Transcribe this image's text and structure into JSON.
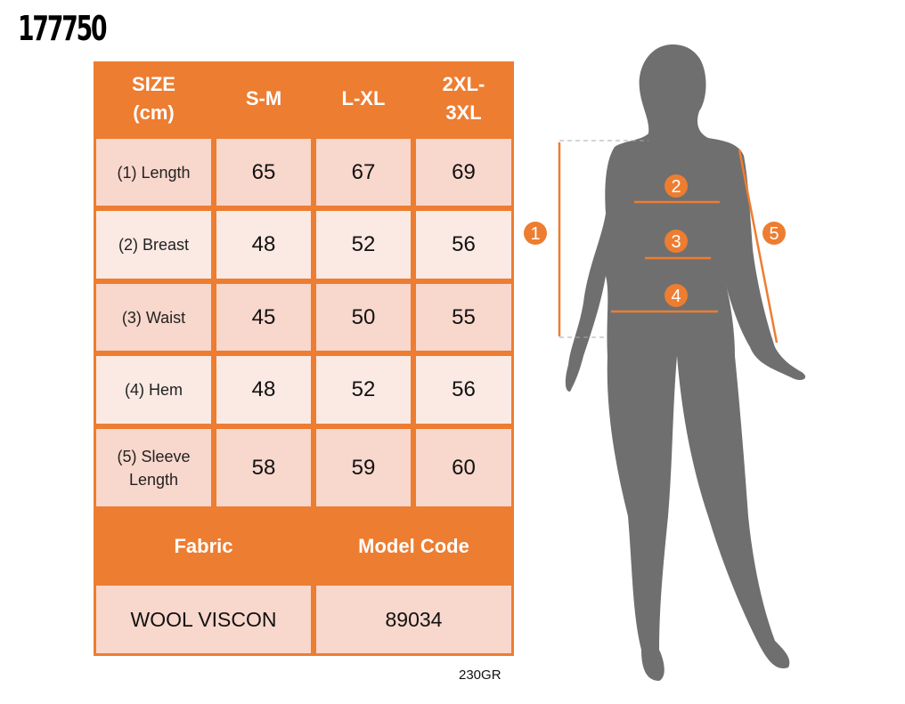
{
  "product_code": "177750",
  "table": {
    "header": [
      "SIZE (cm)",
      "S-M",
      "L-XL",
      "2XL-3XL"
    ],
    "header_lines": [
      [
        "SIZE",
        "(cm)"
      ],
      [
        "S-M"
      ],
      [
        "L-XL"
      ],
      [
        "2XL-",
        "3XL"
      ]
    ],
    "rows": [
      {
        "label": "(1) Length",
        "values": [
          "65",
          "67",
          "69"
        ]
      },
      {
        "label": "(2) Breast",
        "values": [
          "48",
          "52",
          "56"
        ]
      },
      {
        "label": "(3) Waist",
        "values": [
          "45",
          "50",
          "55"
        ]
      },
      {
        "label": "(4) Hem",
        "values": [
          "48",
          "52",
          "56"
        ]
      },
      {
        "label": "(5) Sleeve Length",
        "label_lines": [
          "(5) Sleeve",
          "Length"
        ],
        "values": [
          "58",
          "59",
          "60"
        ]
      }
    ],
    "footer_header": [
      "Fabric",
      "Model Code"
    ],
    "footer_values": [
      "WOOL VISCON",
      "89034"
    ]
  },
  "weight": "230GR",
  "figure": {
    "markers": [
      "1",
      "2",
      "3",
      "4",
      "5"
    ]
  },
  "colors": {
    "accent": "#ed7d31",
    "row_dark": "#f8d7cc",
    "row_light": "#fbe9e3",
    "silhouette": "#6f6f6f"
  }
}
